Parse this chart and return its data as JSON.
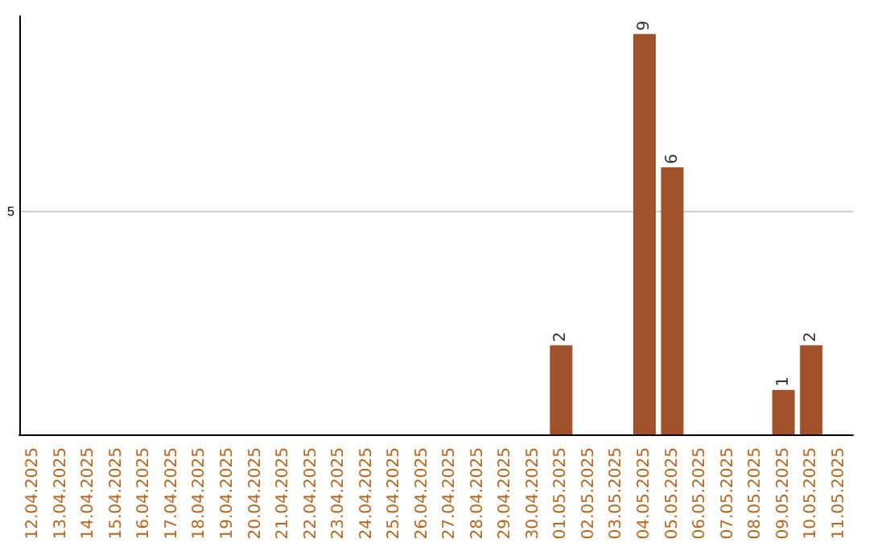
{
  "chart_data": {
    "type": "bar",
    "categories": [
      "12.04.2025",
      "13.04.2025",
      "14.04.2025",
      "15.04.2025",
      "16.04.2025",
      "17.04.2025",
      "18.04.2025",
      "19.04.2025",
      "20.04.2025",
      "21.04.2025",
      "22.04.2025",
      "23.04.2025",
      "24.04.2025",
      "25.04.2025",
      "26.04.2025",
      "27.04.2025",
      "28.04.2025",
      "29.04.2025",
      "30.04.2025",
      "01.05.2025",
      "02.05.2025",
      "03.05.2025",
      "04.05.2025",
      "05.05.2025",
      "06.05.2025",
      "07.05.2025",
      "08.05.2025",
      "09.05.2025",
      "10.05.2025",
      "11.05.2025"
    ],
    "values": [
      null,
      null,
      null,
      null,
      null,
      null,
      null,
      null,
      null,
      null,
      null,
      null,
      null,
      null,
      null,
      null,
      null,
      null,
      null,
      2,
      null,
      null,
      9,
      6,
      null,
      null,
      null,
      1,
      2,
      null
    ],
    "color": "#a0522d",
    "ylim": [
      0,
      9.4
    ],
    "yticks": [
      5
    ],
    "grid": "y",
    "data_labels": true
  }
}
